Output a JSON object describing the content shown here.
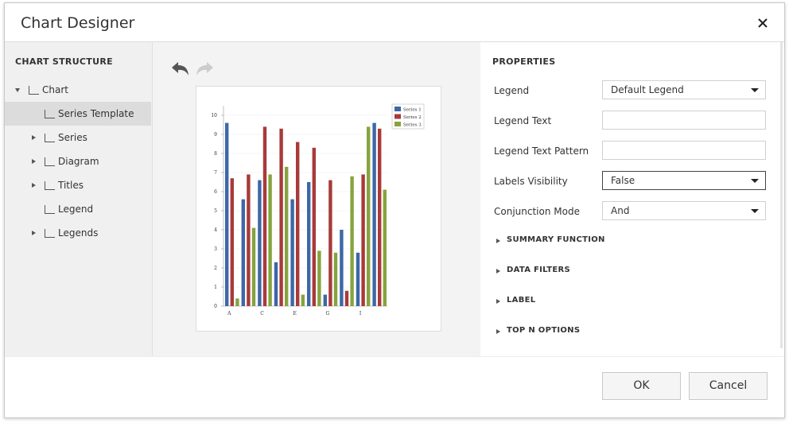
{
  "header": {
    "title": "Chart Designer"
  },
  "structure": {
    "title": "CHART STRUCTURE",
    "items": [
      "Chart",
      "Series Template",
      "Series",
      "Diagram",
      "Titles",
      "Legend",
      "Legends"
    ]
  },
  "chart_data": {
    "type": "bar",
    "categories": [
      "A",
      null,
      "C",
      null,
      "E",
      null,
      "G",
      null,
      "I",
      null
    ],
    "series": [
      {
        "name": "Series 1",
        "color": "#3d67a8",
        "values": [
          9.6,
          5.6,
          6.6,
          2.3,
          5.6,
          6.5,
          0.6,
          4.0,
          2.8,
          9.6
        ]
      },
      {
        "name": "Series 2",
        "color": "#a83a3a",
        "values": [
          6.7,
          6.9,
          9.4,
          9.3,
          8.6,
          8.3,
          6.6,
          0.8,
          6.9,
          9.3
        ]
      },
      {
        "name": "Series 3",
        "color": "#86a33f",
        "values": [
          0.4,
          4.1,
          6.9,
          7.3,
          0.6,
          2.9,
          2.8,
          6.8,
          9.4,
          6.1
        ]
      }
    ],
    "ylim": [
      0,
      10
    ],
    "yticks": [
      0,
      1,
      2,
      3,
      4,
      5,
      6,
      7,
      8,
      9,
      10
    ],
    "grid": true,
    "legend": "top-right"
  },
  "properties": {
    "title": "PROPERTIES",
    "fields": [
      {
        "label": "Legend",
        "value": "Default Legend"
      },
      {
        "label": "Legend Text"
      },
      {
        "label": "Legend Text Pattern"
      },
      {
        "label": "Labels Visibility",
        "value": "False"
      },
      {
        "label": "Conjunction Mode",
        "value": "And"
      }
    ],
    "sections": [
      "SUMMARY FUNCTION",
      "DATA FILTERS",
      "LABEL",
      "TOP N OPTIONS"
    ]
  },
  "buttons": [
    "OK",
    "Cancel"
  ]
}
